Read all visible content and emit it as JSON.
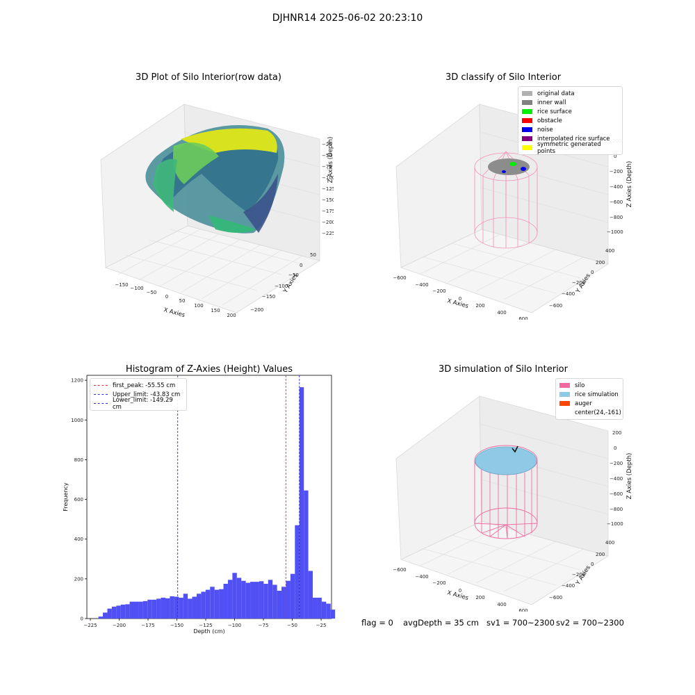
{
  "figure_title": "DJHNR14 2025-06-02 20:23:10",
  "status_bar": {
    "flag": "flag = 0",
    "avg_depth": "avgDepth = 35 cm",
    "sv1": "sv1 = 700~2300",
    "sv2": "sv2 = 700~2300"
  },
  "colors": {
    "hist_bar": "#5050f5",
    "first_peak_line": "#e03030",
    "limit_lines": "#3030d0",
    "silo": "#f06aa0",
    "rice_simulation": "#8ecae6",
    "auger": "#ff4500"
  },
  "chart_data": [
    {
      "type": "scatter",
      "id": "raw3d",
      "title": "3D Plot of Silo Interior(row data)",
      "xlabel": "X Axies",
      "ylabel": "Y Axies",
      "zlabel": "Z Axies (Depth)",
      "x_ticks": [
        "-150",
        "-100",
        "-50",
        "0",
        "50",
        "100",
        "150",
        "200"
      ],
      "y_ticks": [
        "50",
        "0",
        "-50",
        "-100",
        "-150",
        "-200"
      ],
      "z_ticks": [
        "-25",
        "-50",
        "-75",
        "-100",
        "-125",
        "-150",
        "-175",
        "-200",
        "-225"
      ],
      "colormap": "viridis",
      "grid": true
    },
    {
      "type": "scatter",
      "id": "classify3d",
      "title": "3D classify of Silo Interior",
      "xlabel": "X Axies",
      "ylabel": "Y Axies",
      "zlabel": "Z Axies (Depth)",
      "x_ticks": [
        "-600",
        "-400",
        "-200",
        "0",
        "200",
        "400",
        "600"
      ],
      "y_ticks": [
        "400",
        "200",
        "0",
        "-200",
        "-400",
        "-600"
      ],
      "z_ticks": [
        "200",
        "0",
        "-200",
        "-400",
        "-600",
        "-800",
        "-1000"
      ],
      "legend_position": "top-right",
      "legend": [
        {
          "label": "original data",
          "color": "#b0b0b0"
        },
        {
          "label": "inner wall",
          "color": "#808080"
        },
        {
          "label": "rice surface",
          "color": "#00ee00"
        },
        {
          "label": "obstacle",
          "color": "#ff0000"
        },
        {
          "label": "noise",
          "color": "#0000ee"
        },
        {
          "label": "interpolated rice surface",
          "color": "#800080"
        },
        {
          "label": "symmetric generated points",
          "color": "#ffff00"
        }
      ],
      "grid": true
    },
    {
      "type": "bar",
      "id": "hist",
      "title": "Histogram of Z-Axies (Height) Values",
      "xlabel": "Depth (cm)",
      "ylabel": "Frequency",
      "xlim": [
        -228,
        -16
      ],
      "ylim": [
        0,
        1225
      ],
      "x_ticks": [
        -225,
        -200,
        -175,
        -150,
        -125,
        -100,
        -75,
        -50,
        -25
      ],
      "y_ticks": [
        0,
        200,
        400,
        600,
        800,
        1000,
        1200
      ],
      "bin_start": -218,
      "bin_width": 3.87,
      "values": [
        10,
        30,
        50,
        60,
        65,
        70,
        72,
        85,
        85,
        85,
        88,
        95,
        95,
        100,
        105,
        102,
        112,
        110,
        105,
        125,
        100,
        110,
        125,
        135,
        145,
        160,
        145,
        148,
        175,
        195,
        230,
        205,
        190,
        180,
        185,
        185,
        188,
        175,
        195,
        170,
        140,
        160,
        190,
        225,
        470,
        1165,
        645,
        240,
        105,
        105,
        85,
        75,
        45
      ],
      "vlines": [
        {
          "label": "first_peak: -55.55 cm",
          "x": -55.55,
          "color": "#e03030"
        },
        {
          "label": "Upper_limit: -43.83 cm",
          "x": -43.83,
          "color": "#3030d0"
        },
        {
          "label": "Lower_limit: -149.29 cm",
          "x": -149.29,
          "color": "#3030d0"
        }
      ],
      "legend_position": "top-left",
      "grid": false
    },
    {
      "type": "scatter",
      "id": "sim3d",
      "title": "3D simulation of Silo Interior",
      "xlabel": "X Axies",
      "ylabel": "Y Axies",
      "zlabel": "Z Axies (Depth)",
      "x_ticks": [
        "-600",
        "-400",
        "-200",
        "0",
        "200",
        "400",
        "600"
      ],
      "y_ticks": [
        "400",
        "200",
        "0",
        "-200",
        "-400",
        "-600"
      ],
      "z_ticks": [
        "200",
        "0",
        "-200",
        "-400",
        "-600",
        "-800",
        "-1000"
      ],
      "legend_position": "top-right",
      "legend": [
        {
          "label": "silo",
          "color": "#f06aa0"
        },
        {
          "label": "rice simulation",
          "color": "#8ecae6"
        },
        {
          "label": "auger",
          "color": "#ff4500"
        },
        {
          "label": "center(24,-161)",
          "color": ""
        }
      ],
      "grid": true
    }
  ]
}
